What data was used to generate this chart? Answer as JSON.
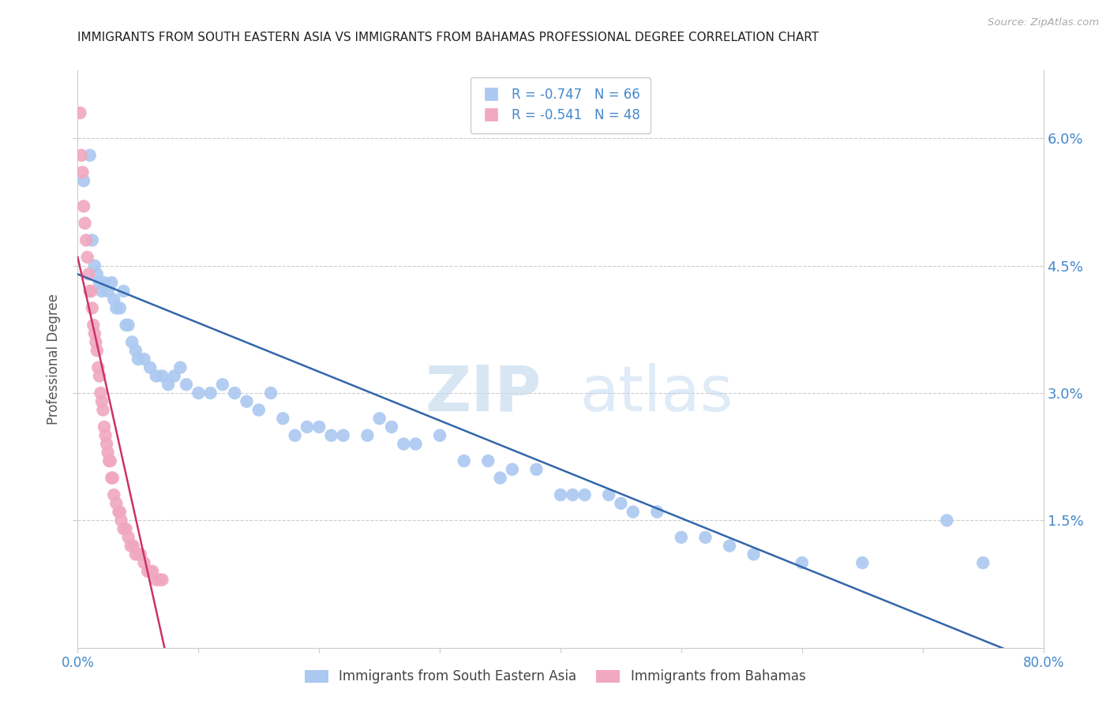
{
  "title": "IMMIGRANTS FROM SOUTH EASTERN ASIA VS IMMIGRANTS FROM BAHAMAS PROFESSIONAL DEGREE CORRELATION CHART",
  "source": "Source: ZipAtlas.com",
  "ylabel": "Professional Degree",
  "ytick_labels": [
    "6.0%",
    "4.5%",
    "3.0%",
    "1.5%"
  ],
  "ytick_values": [
    0.06,
    0.045,
    0.03,
    0.015
  ],
  "ymin": 0.0,
  "ymax": 0.068,
  "xmin": 0.0,
  "xmax": 0.8,
  "legend_blue_r": "-0.747",
  "legend_blue_n": "66",
  "legend_pink_r": "-0.541",
  "legend_pink_n": "48",
  "legend_blue_label": "Immigrants from South Eastern Asia",
  "legend_pink_label": "Immigrants from Bahamas",
  "blue_color": "#aac8f0",
  "pink_color": "#f0a8c0",
  "blue_line_color": "#3366aa",
  "pink_line_color": "#cc3366",
  "watermark_zip": "ZIP",
  "watermark_atlas": "atlas",
  "blue_scatter_x": [
    0.005,
    0.01,
    0.012,
    0.014,
    0.016,
    0.018,
    0.02,
    0.022,
    0.025,
    0.028,
    0.03,
    0.032,
    0.035,
    0.038,
    0.04,
    0.042,
    0.045,
    0.048,
    0.05,
    0.055,
    0.06,
    0.065,
    0.07,
    0.075,
    0.08,
    0.085,
    0.09,
    0.1,
    0.11,
    0.12,
    0.13,
    0.14,
    0.15,
    0.16,
    0.17,
    0.18,
    0.19,
    0.2,
    0.21,
    0.22,
    0.24,
    0.25,
    0.26,
    0.27,
    0.28,
    0.3,
    0.32,
    0.34,
    0.35,
    0.36,
    0.38,
    0.4,
    0.41,
    0.42,
    0.44,
    0.45,
    0.46,
    0.48,
    0.5,
    0.52,
    0.54,
    0.56,
    0.6,
    0.65,
    0.72,
    0.75
  ],
  "blue_scatter_y": [
    0.055,
    0.058,
    0.048,
    0.045,
    0.044,
    0.043,
    0.042,
    0.043,
    0.042,
    0.043,
    0.041,
    0.04,
    0.04,
    0.042,
    0.038,
    0.038,
    0.036,
    0.035,
    0.034,
    0.034,
    0.033,
    0.032,
    0.032,
    0.031,
    0.032,
    0.033,
    0.031,
    0.03,
    0.03,
    0.031,
    0.03,
    0.029,
    0.028,
    0.03,
    0.027,
    0.025,
    0.026,
    0.026,
    0.025,
    0.025,
    0.025,
    0.027,
    0.026,
    0.024,
    0.024,
    0.025,
    0.022,
    0.022,
    0.02,
    0.021,
    0.021,
    0.018,
    0.018,
    0.018,
    0.018,
    0.017,
    0.016,
    0.016,
    0.013,
    0.013,
    0.012,
    0.011,
    0.01,
    0.01,
    0.015,
    0.01
  ],
  "pink_scatter_x": [
    0.002,
    0.003,
    0.004,
    0.005,
    0.006,
    0.007,
    0.008,
    0.009,
    0.01,
    0.011,
    0.012,
    0.013,
    0.014,
    0.015,
    0.016,
    0.017,
    0.018,
    0.019,
    0.02,
    0.021,
    0.022,
    0.023,
    0.024,
    0.025,
    0.026,
    0.027,
    0.028,
    0.029,
    0.03,
    0.032,
    0.034,
    0.035,
    0.036,
    0.038,
    0.04,
    0.042,
    0.044,
    0.046,
    0.048,
    0.05,
    0.052,
    0.055,
    0.058,
    0.06,
    0.062,
    0.065,
    0.068,
    0.07
  ],
  "pink_scatter_y": [
    0.063,
    0.058,
    0.056,
    0.052,
    0.05,
    0.048,
    0.046,
    0.044,
    0.042,
    0.042,
    0.04,
    0.038,
    0.037,
    0.036,
    0.035,
    0.033,
    0.032,
    0.03,
    0.029,
    0.028,
    0.026,
    0.025,
    0.024,
    0.023,
    0.022,
    0.022,
    0.02,
    0.02,
    0.018,
    0.017,
    0.016,
    0.016,
    0.015,
    0.014,
    0.014,
    0.013,
    0.012,
    0.012,
    0.011,
    0.011,
    0.011,
    0.01,
    0.009,
    0.009,
    0.009,
    0.008,
    0.008,
    0.008
  ],
  "blue_line_x_start": 0.0,
  "blue_line_x_end": 0.8,
  "blue_line_y_start": 0.044,
  "blue_line_y_end": -0.002,
  "pink_line_x_start": 0.0,
  "pink_line_x_end": 0.075,
  "pink_line_y_start": 0.046,
  "pink_line_y_end": -0.002,
  "xtick_positions": [
    0.0,
    0.1,
    0.2,
    0.3,
    0.4,
    0.5,
    0.6,
    0.7,
    0.8
  ],
  "xtick_color": "#4488cc",
  "ytick_color": "#4488cc",
  "grid_color": "#cccccc",
  "spine_color": "#cccccc",
  "title_color": "#222222",
  "source_color": "#aaaaaa",
  "ylabel_color": "#555555"
}
